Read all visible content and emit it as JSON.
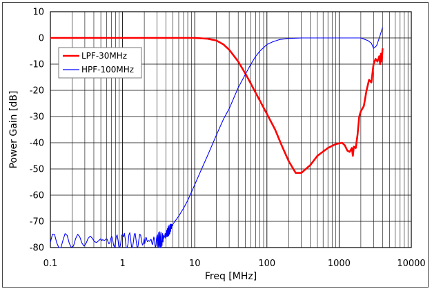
{
  "chart_data": {
    "type": "line",
    "title": "",
    "xlabel": "Freq [MHz]",
    "ylabel": "Power Gain [dB]",
    "xscale": "log",
    "xlim": [
      0.1,
      10000
    ],
    "ylim": [
      -80,
      10
    ],
    "grid": true,
    "legend_position": "top-left",
    "xticks": [
      {
        "value": 0.1,
        "label": "0.1"
      },
      {
        "value": 1,
        "label": "1"
      },
      {
        "value": 10,
        "label": "10"
      },
      {
        "value": 100,
        "label": "100"
      },
      {
        "value": 1000,
        "label": "1000"
      },
      {
        "value": 10000,
        "label": "10000"
      }
    ],
    "yticks": [
      {
        "value": 10,
        "label": "10"
      },
      {
        "value": 0,
        "label": "0"
      },
      {
        "value": -10,
        "label": "-10"
      },
      {
        "value": -20,
        "label": "-20"
      },
      {
        "value": -30,
        "label": "-30"
      },
      {
        "value": -40,
        "label": "-40"
      },
      {
        "value": -50,
        "label": "-50"
      },
      {
        "value": -60,
        "label": "-60"
      },
      {
        "value": -70,
        "label": "-70"
      },
      {
        "value": -80,
        "label": "-80"
      }
    ],
    "series": [
      {
        "name": "LPF-30MHz",
        "color": "#ff0000",
        "x": [
          0.1,
          1,
          10,
          15,
          20,
          25,
          30,
          40,
          50,
          60,
          70,
          80,
          100,
          130,
          160,
          200,
          250,
          300,
          400,
          500,
          700,
          900,
          1100,
          1200,
          1300,
          1400,
          1500,
          1550,
          1600,
          1700,
          1800,
          1900,
          2000,
          2200,
          2400,
          2600,
          2800,
          3000,
          3200,
          3400,
          3600,
          3700,
          3800,
          3900,
          4000
        ],
        "y": [
          0,
          0,
          0,
          -0.3,
          -1,
          -2.5,
          -4.5,
          -9,
          -13.5,
          -17.5,
          -21,
          -24,
          -29,
          -35,
          -41,
          -47,
          -51.5,
          -51.5,
          -48.5,
          -45,
          -42,
          -40.5,
          -40,
          -41,
          -43,
          -43.5,
          -42,
          -45,
          -41.5,
          -42,
          -37,
          -30,
          -28,
          -26,
          -20,
          -16,
          -17,
          -10,
          -8,
          -9,
          -7,
          -10,
          -6,
          -9,
          -4
        ]
      },
      {
        "name": "HPF-100MHz",
        "color": "#0000ff",
        "x": [
          0.1,
          0.5,
          1,
          2,
          3,
          3.5,
          4,
          4.5,
          5,
          6,
          7,
          8,
          10,
          12,
          15,
          20,
          25,
          30,
          40,
          50,
          60,
          70,
          80,
          100,
          120,
          150,
          200,
          300,
          500,
          1000,
          1500,
          2000,
          2500,
          2800,
          3000,
          3300,
          3500,
          3700,
          4000
        ],
        "y": [
          -78,
          -77,
          -78,
          -77,
          -78,
          -77,
          -75,
          -73,
          -71,
          -68,
          -65,
          -62,
          -56,
          -51,
          -45,
          -37,
          -31,
          -27,
          -19,
          -14,
          -10,
          -7,
          -5,
          -2.5,
          -1.5,
          -0.6,
          -0.2,
          0,
          0,
          0,
          0,
          0,
          -1,
          -2,
          -4,
          -3,
          -1,
          1,
          4
        ]
      }
    ]
  }
}
